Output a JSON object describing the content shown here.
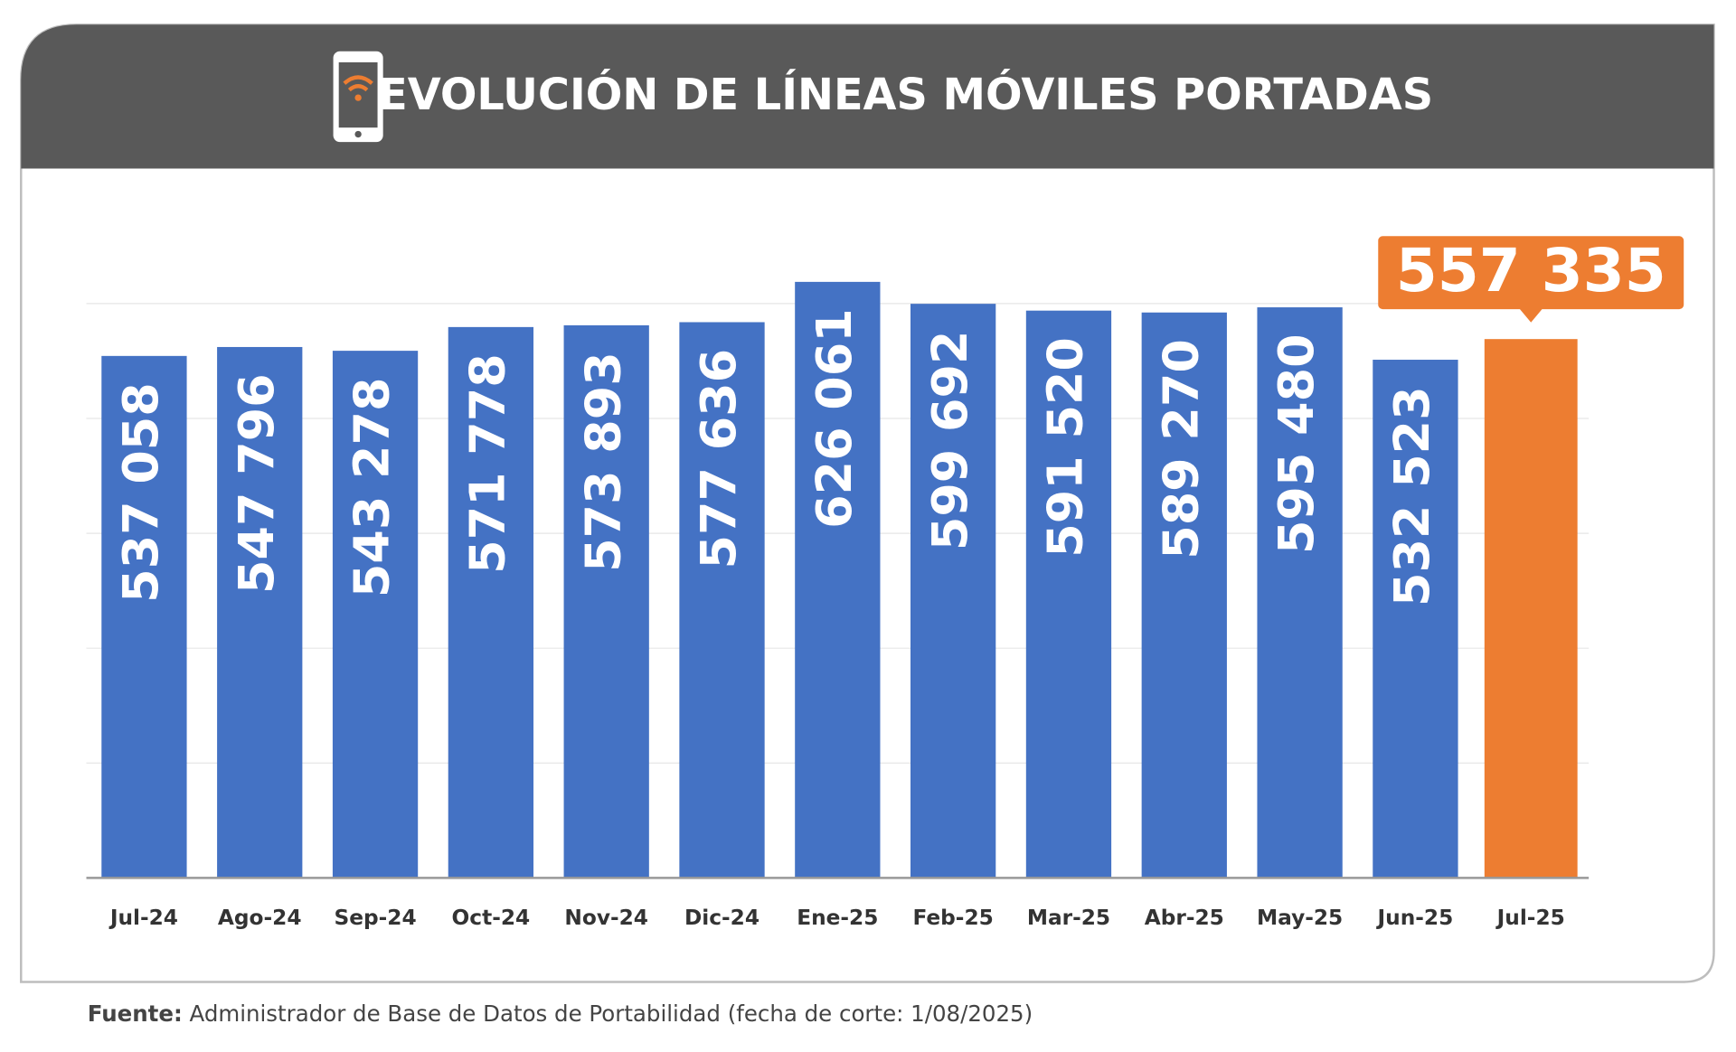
{
  "chart_data": {
    "type": "bar",
    "title": "EVOLUCIÓN DE LÍNEAS MÓVILES PORTADAS",
    "categories": [
      "Jul-24",
      "Ago-24",
      "Sep-24",
      "Oct-24",
      "Nov-24",
      "Dic-24",
      "Ene-25",
      "Feb-25",
      "Mar-25",
      "Abr-25",
      "May-25",
      "Jun-25",
      "Jul-25"
    ],
    "values": [
      537058,
      547796,
      543278,
      571778,
      573893,
      577636,
      626061,
      599692,
      591520,
      589270,
      595480,
      532523,
      557335
    ],
    "value_labels": [
      "537 058",
      "547 796",
      "543 278",
      "571 778",
      "573 893",
      "577 636",
      "626 061",
      "599 692",
      "591 520",
      "589 270",
      "595 480",
      "532 523",
      "557 335"
    ],
    "colors": [
      "#4472c4",
      "#4472c4",
      "#4472c4",
      "#4472c4",
      "#4472c4",
      "#4472c4",
      "#4472c4",
      "#4472c4",
      "#4472c4",
      "#4472c4",
      "#4472c4",
      "#4472c4",
      "#ed7d31"
    ],
    "ylim": [
      -90000,
      600000
    ],
    "yticks": [
      -90000,
      48000,
      186000,
      324000,
      462000,
      600000
    ],
    "grid": true
  },
  "footnote": {
    "label": "Fuente:",
    "text": "Administrador de Base de Datos de Portabilidad (fecha de corte: 1/08/2025)"
  }
}
